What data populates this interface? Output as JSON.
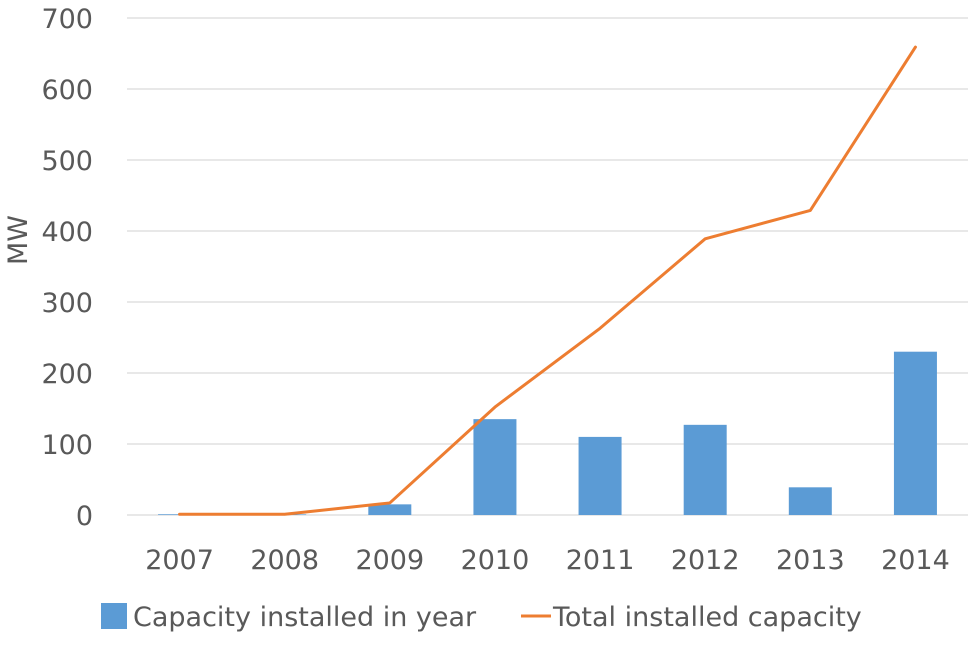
{
  "chart_data": {
    "type": "bar",
    "categories": [
      "2007",
      "2008",
      "2009",
      "2010",
      "2011",
      "2012",
      "2013",
      "2014"
    ],
    "series": [
      {
        "name": "Capacity installed in year",
        "kind": "bar",
        "color": "#5b9bd5",
        "values": [
          1,
          0,
          15,
          135,
          110,
          127,
          39,
          230
        ]
      },
      {
        "name": "Total installed capacity",
        "kind": "line",
        "color": "#ed7d31",
        "values": [
          1,
          1,
          17,
          152,
          263,
          389,
          429,
          659
        ]
      }
    ],
    "title": "",
    "xlabel": "",
    "ylabel": "MW",
    "ylim": [
      0,
      700
    ],
    "yticks": [
      "0",
      "100",
      "200",
      "300",
      "400",
      "500",
      "600",
      "700"
    ],
    "grid": true,
    "legend": "bottom"
  }
}
